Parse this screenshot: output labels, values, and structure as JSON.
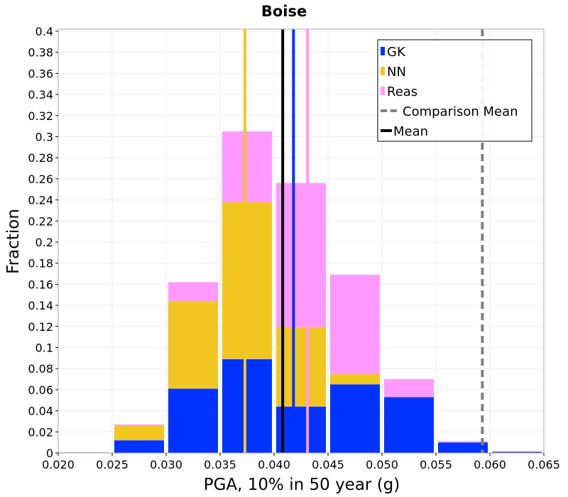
{
  "chart_data": {
    "type": "bar",
    "stacked": true,
    "title": "Boise",
    "xlabel": "PGA, 10% in 50 year (g)",
    "ylabel": "Fraction",
    "xlim": [
      0.02,
      0.065
    ],
    "ylim": [
      0,
      0.402
    ],
    "x_ticks": [
      "0.020",
      "0.025",
      "0.030",
      "0.035",
      "0.040",
      "0.045",
      "0.050",
      "0.055",
      "0.060",
      "0.065"
    ],
    "y_ticks": [
      "0",
      "0.02",
      "0.04",
      "0.06",
      "0.08",
      "0.1",
      "0.12",
      "0.14",
      "0.16",
      "0.18",
      "0.2",
      "0.22",
      "0.24",
      "0.26",
      "0.28",
      "0.3",
      "0.32",
      "0.34",
      "0.36",
      "0.38",
      "0.4"
    ],
    "bin_centers": [
      0.0225,
      0.0275,
      0.0325,
      0.0375,
      0.0425,
      0.0475,
      0.0525,
      0.0575,
      0.0625
    ],
    "bin_width": 0.005,
    "grid": true,
    "legend_position": "top-right",
    "series": [
      {
        "name": "GK",
        "color": "#0033ff",
        "values": [
          0.0,
          0.012,
          0.061,
          0.089,
          0.044,
          0.065,
          0.053,
          0.01,
          0.001
        ],
        "mean": 0.0418
      },
      {
        "name": "NN",
        "color": "#f2c621",
        "values": [
          0.0,
          0.014,
          0.083,
          0.149,
          0.075,
          0.01,
          0.0,
          0.0,
          0.0
        ],
        "mean": 0.0373
      },
      {
        "name": "Reas",
        "color": "#ff99ff",
        "values": [
          0.0,
          0.001,
          0.018,
          0.067,
          0.137,
          0.094,
          0.017,
          0.001,
          0.0
        ],
        "mean": 0.0431
      }
    ],
    "comparison_mean": {
      "label": "Comparison Mean",
      "x": 0.0593,
      "color": "#808080",
      "style": "dashed"
    },
    "overall_mean": {
      "label": "Mean",
      "x": 0.0408,
      "color": "#000000"
    }
  }
}
